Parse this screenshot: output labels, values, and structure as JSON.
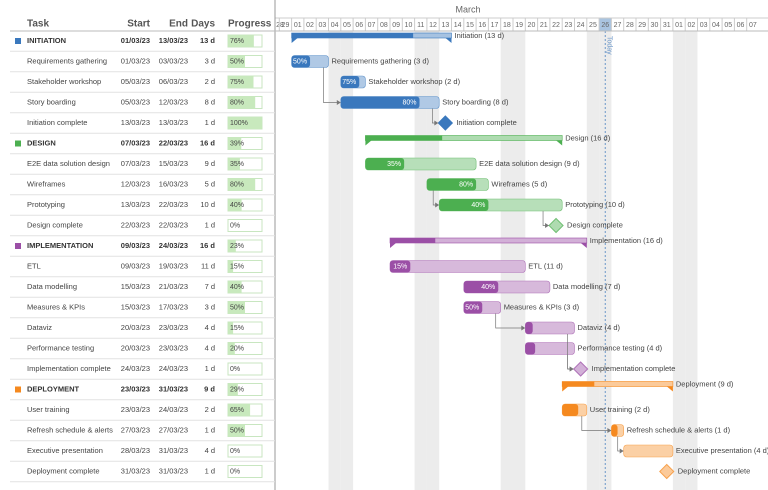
{
  "chart_data": {
    "type": "gantt",
    "headers": {
      "task": "Task",
      "start": "Start",
      "end": "End",
      "days": "Days",
      "progress": "Progress"
    },
    "month": "March",
    "day_labels": [
      "28",
      "29",
      "01",
      "02",
      "03",
      "04",
      "05",
      "06",
      "07",
      "08",
      "09",
      "10",
      "11",
      "12",
      "13",
      "14",
      "15",
      "16",
      "17",
      "18",
      "19",
      "20",
      "21",
      "22",
      "23",
      "24",
      "25",
      "26",
      "27",
      "28",
      "29",
      "30",
      "31",
      "01",
      "02",
      "03",
      "04",
      "05",
      "06",
      "07"
    ],
    "today": {
      "label": "Today",
      "day": "26"
    },
    "tasks": [
      {
        "name": "INITIATION",
        "group": true,
        "color": "#3a78bd",
        "start": "01/03/23",
        "end": "13/03/23",
        "days": "13 d",
        "progress": 76,
        "progress_label": "76%",
        "bar_label": "Initiation (13 d)"
      },
      {
        "name": "Requirements gathering",
        "start": "01/03/23",
        "end": "03/03/23",
        "days": "3 d",
        "progress": 50,
        "progress_label": "50%",
        "bar_label": "Requirements gathering (3 d)"
      },
      {
        "name": "Stakeholder workshop",
        "start": "05/03/23",
        "end": "06/03/23",
        "days": "2 d",
        "progress": 75,
        "progress_label": "75%",
        "bar_label": "Stakeholder workshop (2 d)"
      },
      {
        "name": "Story boarding",
        "start": "05/03/23",
        "end": "12/03/23",
        "days": "8 d",
        "progress": 80,
        "progress_label": "80%",
        "bar_label": "Story boarding (8 d)"
      },
      {
        "name": "Initiation complete",
        "milestone": true,
        "start": "13/03/23",
        "end": "13/03/23",
        "days": "1 d",
        "progress": 100,
        "progress_label": "100%",
        "bar_label": "Initiation complete"
      },
      {
        "name": "DESIGN",
        "group": true,
        "color": "#4caf50",
        "start": "07/03/23",
        "end": "22/03/23",
        "days": "16 d",
        "progress": 39,
        "progress_label": "39%",
        "bar_label": "Design (16 d)"
      },
      {
        "name": "E2E data solution design",
        "start": "07/03/23",
        "end": "15/03/23",
        "days": "9 d",
        "progress": 35,
        "progress_label": "35%",
        "bar_label": "E2E data solution design (9 d)"
      },
      {
        "name": "Wireframes",
        "start": "12/03/23",
        "end": "16/03/23",
        "days": "5 d",
        "progress": 80,
        "progress_label": "80%",
        "bar_label": "Wireframes (5 d)"
      },
      {
        "name": "Prototyping",
        "start": "13/03/23",
        "end": "22/03/23",
        "days": "10 d",
        "progress": 40,
        "progress_label": "40%",
        "bar_label": "Prototyping (10 d)"
      },
      {
        "name": "Design complete",
        "milestone": true,
        "start": "22/03/23",
        "end": "22/03/23",
        "days": "1 d",
        "progress": 0,
        "progress_label": "0%",
        "bar_label": "Design complete"
      },
      {
        "name": "IMPLEMENTATION",
        "group": true,
        "color": "#9b4fa6",
        "start": "09/03/23",
        "end": "24/03/23",
        "days": "16 d",
        "progress": 23,
        "progress_label": "23%",
        "bar_label": "Implementation (16 d)"
      },
      {
        "name": "ETL",
        "start": "09/03/23",
        "end": "19/03/23",
        "days": "11 d",
        "progress": 15,
        "progress_label": "15%",
        "bar_label": "ETL (11 d)"
      },
      {
        "name": "Data modelling",
        "start": "15/03/23",
        "end": "21/03/23",
        "days": "7 d",
        "progress": 40,
        "progress_label": "40%",
        "bar_label": "Data modelling (7 d)"
      },
      {
        "name": "Measures & KPIs",
        "start": "15/03/23",
        "end": "17/03/23",
        "days": "3 d",
        "progress": 50,
        "progress_label": "50%",
        "bar_label": "Measures & KPIs (3 d)"
      },
      {
        "name": "Dataviz",
        "start": "20/03/23",
        "end": "23/03/23",
        "days": "4 d",
        "progress": 15,
        "progress_label": "15%",
        "bar_label": "Dataviz (4 d)"
      },
      {
        "name": "Performance testing",
        "start": "20/03/23",
        "end": "23/03/23",
        "days": "4 d",
        "progress": 20,
        "progress_label": "20%",
        "bar_label": "Performance testing (4 d)"
      },
      {
        "name": "Implementation complete",
        "milestone": true,
        "start": "24/03/23",
        "end": "24/03/23",
        "days": "1 d",
        "progress": 0,
        "progress_label": "0%",
        "bar_label": "Implementation complete"
      },
      {
        "name": "DEPLOYMENT",
        "group": true,
        "color": "#f5891f",
        "start": "23/03/23",
        "end": "31/03/23",
        "days": "9 d",
        "progress": 29,
        "progress_label": "29%",
        "bar_label": "Deployment (9 d)"
      },
      {
        "name": "User training",
        "start": "23/03/23",
        "end": "24/03/23",
        "days": "2 d",
        "progress": 65,
        "progress_label": "65%",
        "bar_label": "User training (2 d)"
      },
      {
        "name": "Refresh schedule & alerts",
        "start": "27/03/23",
        "end": "27/03/23",
        "days": "1 d",
        "progress": 50,
        "progress_label": "50%",
        "bar_label": "Refresh schedule & alerts (1 d)"
      },
      {
        "name": "Executive presentation",
        "start": "28/03/23",
        "end": "31/03/23",
        "days": "4 d",
        "progress": 0,
        "progress_label": "0%",
        "bar_label": "Executive presentation (4 d)"
      },
      {
        "name": "Deployment complete",
        "milestone": true,
        "start": "31/03/23",
        "end": "31/03/23",
        "days": "1 d",
        "progress": 0,
        "progress_label": "0%",
        "bar_label": "Deployment complete"
      }
    ]
  }
}
